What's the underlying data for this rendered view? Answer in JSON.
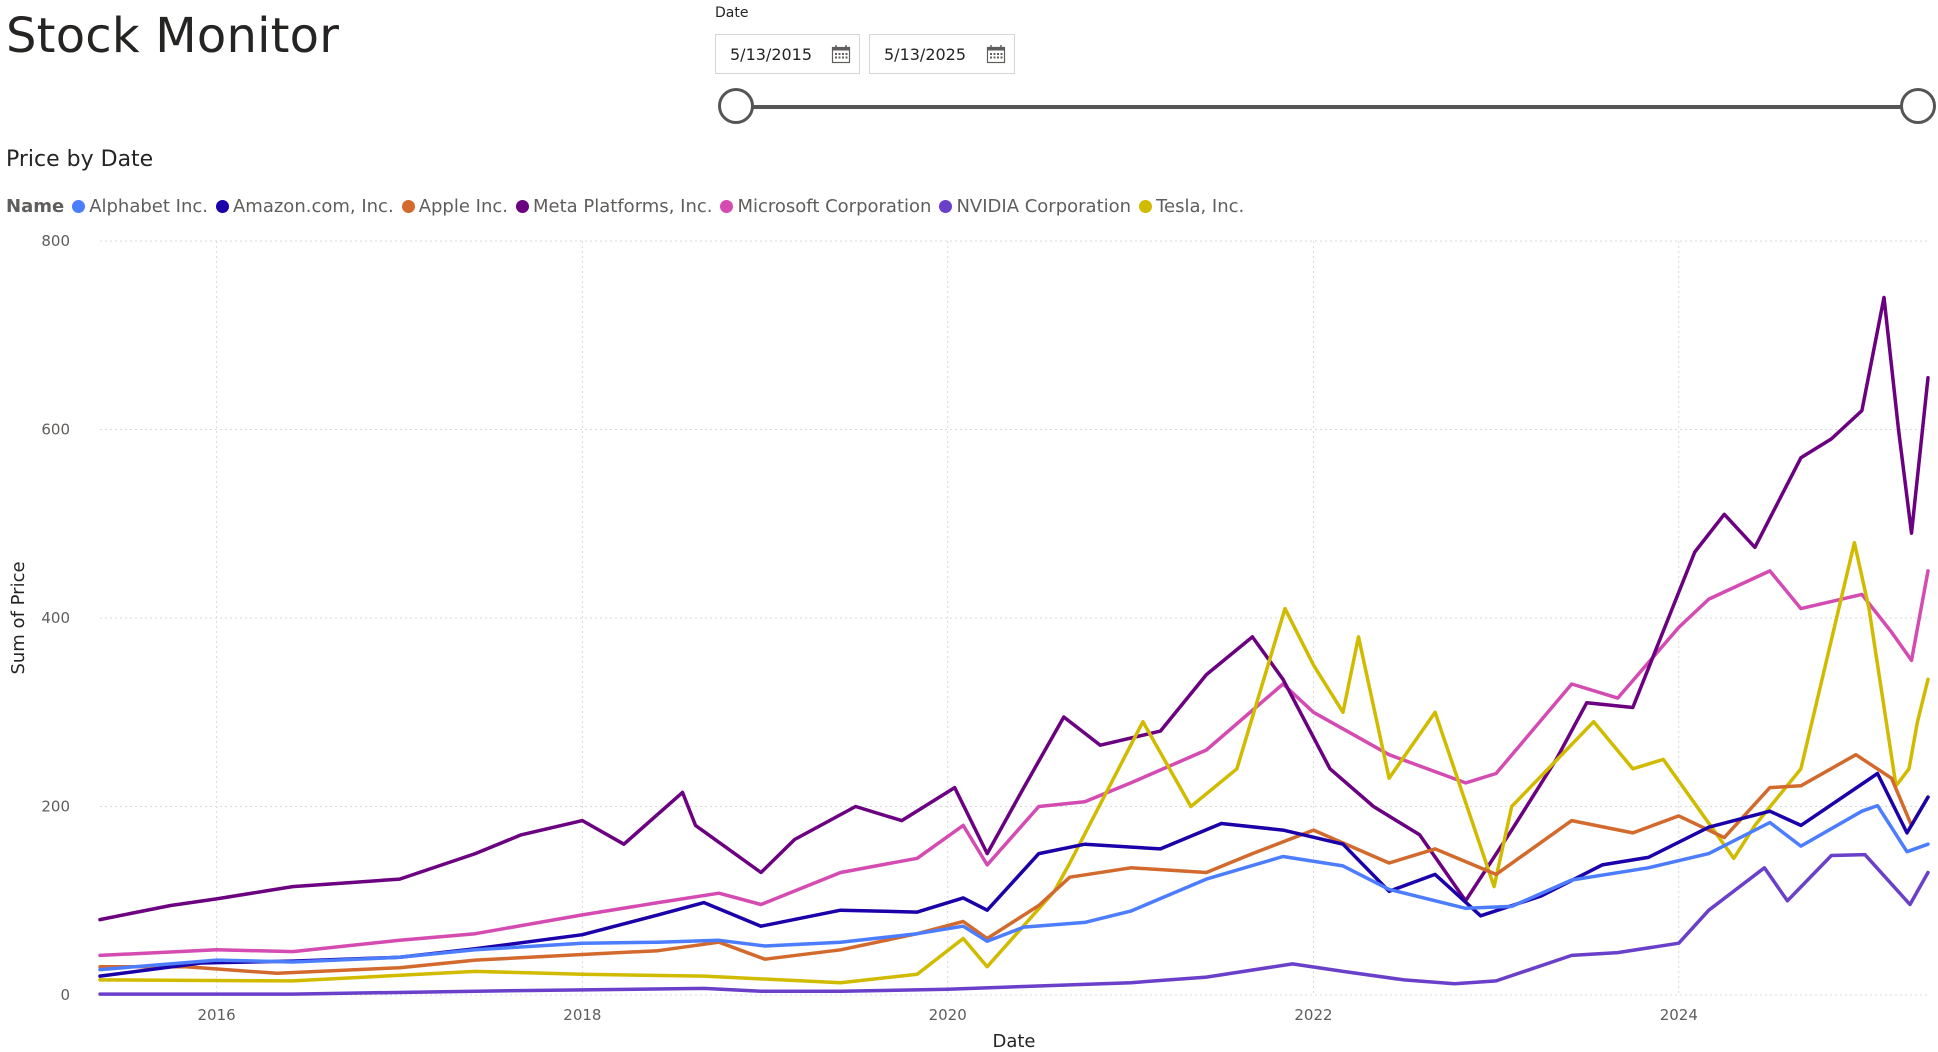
{
  "page": {
    "title": "Stock Monitor"
  },
  "slicer": {
    "label": "Date",
    "start_date": "5/13/2015",
    "end_date": "5/13/2025",
    "calendar_icon": "calendar-icon",
    "track_color": "#555555"
  },
  "chart_data": {
    "type": "line",
    "title": "Price by Date",
    "legend_title": "Name",
    "legend_position": "top-left",
    "xlabel": "Date",
    "ylabel": "Sum of Price",
    "xlim": [
      "2015-05-13",
      "2025-05-13"
    ],
    "ylim": [
      0,
      800
    ],
    "y_ticks": [
      0,
      200,
      400,
      600,
      800
    ],
    "x_ticks": [
      "2016",
      "2018",
      "2020",
      "2022",
      "2024"
    ],
    "grid": true,
    "series": [
      {
        "name": "Alphabet Inc.",
        "color": "#4c7dff",
        "points": [
          [
            "2015-05-13",
            27
          ],
          [
            "2015-10-01",
            33
          ],
          [
            "2016-01-01",
            37
          ],
          [
            "2016-06-01",
            35
          ],
          [
            "2017-01-01",
            40
          ],
          [
            "2017-06-01",
            48
          ],
          [
            "2018-01-01",
            55
          ],
          [
            "2018-06-01",
            56
          ],
          [
            "2018-10-01",
            58
          ],
          [
            "2019-01-01",
            52
          ],
          [
            "2019-06-01",
            56
          ],
          [
            "2019-11-01",
            65
          ],
          [
            "2020-02-01",
            73
          ],
          [
            "2020-03-20",
            57
          ],
          [
            "2020-06-01",
            72
          ],
          [
            "2020-10-01",
            77
          ],
          [
            "2021-01-01",
            89
          ],
          [
            "2021-06-01",
            123
          ],
          [
            "2021-11-01",
            147
          ],
          [
            "2022-03-01",
            137
          ],
          [
            "2022-06-01",
            112
          ],
          [
            "2022-11-01",
            92
          ],
          [
            "2023-02-01",
            94
          ],
          [
            "2023-06-01",
            122
          ],
          [
            "2023-11-01",
            135
          ],
          [
            "2024-03-01",
            150
          ],
          [
            "2024-07-01",
            183
          ],
          [
            "2024-09-01",
            158
          ],
          [
            "2025-01-01",
            195
          ],
          [
            "2025-02-01",
            201
          ],
          [
            "2025-04-01",
            152
          ],
          [
            "2025-05-13",
            160
          ]
        ]
      },
      {
        "name": "Amazon.com, Inc.",
        "color": "#1a00a8",
        "points": [
          [
            "2015-05-13",
            20
          ],
          [
            "2015-12-01",
            34
          ],
          [
            "2016-06-01",
            36
          ],
          [
            "2017-01-01",
            40
          ],
          [
            "2017-06-01",
            49
          ],
          [
            "2018-01-01",
            64
          ],
          [
            "2018-06-01",
            85
          ],
          [
            "2018-09-01",
            98
          ],
          [
            "2018-12-24",
            73
          ],
          [
            "2019-06-01",
            90
          ],
          [
            "2019-11-01",
            88
          ],
          [
            "2020-02-01",
            103
          ],
          [
            "2020-03-20",
            90
          ],
          [
            "2020-07-01",
            150
          ],
          [
            "2020-10-01",
            160
          ],
          [
            "2021-03-01",
            155
          ],
          [
            "2021-07-01",
            182
          ],
          [
            "2021-11-01",
            175
          ],
          [
            "2022-03-01",
            160
          ],
          [
            "2022-06-01",
            110
          ],
          [
            "2022-09-01",
            128
          ],
          [
            "2022-12-01",
            84
          ],
          [
            "2023-04-01",
            105
          ],
          [
            "2023-08-01",
            138
          ],
          [
            "2023-11-01",
            146
          ],
          [
            "2024-03-01",
            178
          ],
          [
            "2024-07-01",
            195
          ],
          [
            "2024-09-01",
            180
          ],
          [
            "2025-02-01",
            235
          ],
          [
            "2025-04-01",
            172
          ],
          [
            "2025-05-13",
            210
          ]
        ]
      },
      {
        "name": "Apple Inc.",
        "color": "#d26a2e",
        "points": [
          [
            "2015-05-13",
            30
          ],
          [
            "2015-11-01",
            30
          ],
          [
            "2016-05-01",
            23
          ],
          [
            "2017-01-01",
            29
          ],
          [
            "2017-06-01",
            37
          ],
          [
            "2018-01-01",
            43
          ],
          [
            "2018-06-01",
            47
          ],
          [
            "2018-10-01",
            56
          ],
          [
            "2019-01-01",
            38
          ],
          [
            "2019-06-01",
            48
          ],
          [
            "2019-11-01",
            65
          ],
          [
            "2020-02-01",
            78
          ],
          [
            "2020-03-20",
            60
          ],
          [
            "2020-07-01",
            95
          ],
          [
            "2020-09-01",
            125
          ],
          [
            "2021-01-01",
            135
          ],
          [
            "2021-06-01",
            130
          ],
          [
            "2021-09-01",
            150
          ],
          [
            "2022-01-01",
            175
          ],
          [
            "2022-06-01",
            140
          ],
          [
            "2022-09-01",
            155
          ],
          [
            "2023-01-01",
            128
          ],
          [
            "2023-06-01",
            185
          ],
          [
            "2023-10-01",
            172
          ],
          [
            "2024-01-01",
            190
          ],
          [
            "2024-04-01",
            167
          ],
          [
            "2024-07-01",
            220
          ],
          [
            "2024-09-01",
            222
          ],
          [
            "2024-12-20",
            255
          ],
          [
            "2025-03-01",
            230
          ],
          [
            "2025-04-10",
            180
          ],
          [
            "2025-05-13",
            210
          ]
        ]
      },
      {
        "name": "Meta Platforms, Inc.",
        "color": "#6b0080",
        "points": [
          [
            "2015-05-13",
            80
          ],
          [
            "2015-10-01",
            95
          ],
          [
            "2016-01-01",
            102
          ],
          [
            "2016-06-01",
            115
          ],
          [
            "2017-01-01",
            123
          ],
          [
            "2017-06-01",
            150
          ],
          [
            "2017-09-01",
            170
          ],
          [
            "2018-01-01",
            185
          ],
          [
            "2018-03-25",
            160
          ],
          [
            "2018-07-20",
            215
          ],
          [
            "2018-08-15",
            180
          ],
          [
            "2018-12-24",
            130
          ],
          [
            "2019-03-01",
            165
          ],
          [
            "2019-07-01",
            200
          ],
          [
            "2019-10-01",
            185
          ],
          [
            "2020-01-15",
            220
          ],
          [
            "2020-03-20",
            150
          ],
          [
            "2020-06-01",
            220
          ],
          [
            "2020-08-20",
            295
          ],
          [
            "2020-11-01",
            265
          ],
          [
            "2021-03-01",
            280
          ],
          [
            "2021-06-01",
            340
          ],
          [
            "2021-09-01",
            380
          ],
          [
            "2021-11-01",
            335
          ],
          [
            "2022-02-03",
            240
          ],
          [
            "2022-05-01",
            200
          ],
          [
            "2022-08-01",
            170
          ],
          [
            "2022-11-01",
            100
          ],
          [
            "2023-02-01",
            175
          ],
          [
            "2023-05-01",
            250
          ],
          [
            "2023-07-01",
            310
          ],
          [
            "2023-10-01",
            305
          ],
          [
            "2024-02-02",
            470
          ],
          [
            "2024-04-01",
            510
          ],
          [
            "2024-06-01",
            475
          ],
          [
            "2024-09-01",
            570
          ],
          [
            "2024-11-01",
            590
          ],
          [
            "2025-01-01",
            620
          ],
          [
            "2025-02-14",
            740
          ],
          [
            "2025-03-15",
            600
          ],
          [
            "2025-04-10",
            490
          ],
          [
            "2025-05-13",
            655
          ]
        ]
      },
      {
        "name": "Microsoft Corporation",
        "color": "#d44bb1",
        "points": [
          [
            "2015-05-13",
            42
          ],
          [
            "2016-01-01",
            48
          ],
          [
            "2016-06-01",
            46
          ],
          [
            "2017-01-01",
            58
          ],
          [
            "2017-06-01",
            65
          ],
          [
            "2018-01-01",
            85
          ],
          [
            "2018-06-01",
            98
          ],
          [
            "2018-10-01",
            108
          ],
          [
            "2018-12-24",
            96
          ],
          [
            "2019-06-01",
            130
          ],
          [
            "2019-11-01",
            145
          ],
          [
            "2020-02-01",
            180
          ],
          [
            "2020-03-20",
            138
          ],
          [
            "2020-07-01",
            200
          ],
          [
            "2020-10-01",
            205
          ],
          [
            "2021-01-01",
            225
          ],
          [
            "2021-06-01",
            260
          ],
          [
            "2021-11-01",
            330
          ],
          [
            "2022-01-01",
            300
          ],
          [
            "2022-06-01",
            255
          ],
          [
            "2022-11-01",
            225
          ],
          [
            "2023-01-01",
            235
          ],
          [
            "2023-06-01",
            330
          ],
          [
            "2023-09-01",
            315
          ],
          [
            "2024-01-01",
            390
          ],
          [
            "2024-03-01",
            420
          ],
          [
            "2024-07-01",
            450
          ],
          [
            "2024-09-01",
            410
          ],
          [
            "2025-01-01",
            425
          ],
          [
            "2025-03-01",
            385
          ],
          [
            "2025-04-10",
            355
          ],
          [
            "2025-05-13",
            450
          ]
        ]
      },
      {
        "name": "NVIDIA Corporation",
        "color": "#6a3fc9",
        "points": [
          [
            "2015-05-13",
            1
          ],
          [
            "2016-06-01",
            1
          ],
          [
            "2017-06-01",
            4
          ],
          [
            "2018-09-01",
            7
          ],
          [
            "2018-12-24",
            4
          ],
          [
            "2019-06-01",
            4
          ],
          [
            "2020-01-01",
            6
          ],
          [
            "2020-06-01",
            9
          ],
          [
            "2021-01-01",
            13
          ],
          [
            "2021-06-01",
            19
          ],
          [
            "2021-11-20",
            33
          ],
          [
            "2022-03-01",
            25
          ],
          [
            "2022-07-01",
            16
          ],
          [
            "2022-10-10",
            12
          ],
          [
            "2023-01-01",
            15
          ],
          [
            "2023-06-01",
            42
          ],
          [
            "2023-09-01",
            45
          ],
          [
            "2024-01-01",
            55
          ],
          [
            "2024-03-01",
            90
          ],
          [
            "2024-06-20",
            135
          ],
          [
            "2024-08-05",
            100
          ],
          [
            "2024-11-01",
            148
          ],
          [
            "2025-01-07",
            149
          ],
          [
            "2025-04-07",
            96
          ],
          [
            "2025-05-13",
            130
          ]
        ]
      },
      {
        "name": "Tesla, Inc.",
        "color": "#d1bb00",
        "points": [
          [
            "2015-05-13",
            16
          ],
          [
            "2016-06-01",
            15
          ],
          [
            "2017-06-01",
            25
          ],
          [
            "2018-01-01",
            22
          ],
          [
            "2018-09-01",
            20
          ],
          [
            "2019-06-01",
            13
          ],
          [
            "2019-11-01",
            22
          ],
          [
            "2020-02-01",
            60
          ],
          [
            "2020-03-20",
            30
          ],
          [
            "2020-08-01",
            110
          ],
          [
            "2020-09-01",
            140
          ],
          [
            "2021-01-25",
            290
          ],
          [
            "2021-05-01",
            200
          ],
          [
            "2021-08-01",
            240
          ],
          [
            "2021-11-05",
            410
          ],
          [
            "2022-01-01",
            350
          ],
          [
            "2022-03-01",
            300
          ],
          [
            "2022-04-01",
            380
          ],
          [
            "2022-06-01",
            230
          ],
          [
            "2022-09-01",
            300
          ],
          [
            "2022-12-28",
            115
          ],
          [
            "2023-02-01",
            200
          ],
          [
            "2023-07-15",
            290
          ],
          [
            "2023-10-01",
            240
          ],
          [
            "2023-12-01",
            250
          ],
          [
            "2024-04-20",
            145
          ],
          [
            "2024-06-01",
            180
          ],
          [
            "2024-09-01",
            240
          ],
          [
            "2024-12-17",
            480
          ],
          [
            "2025-01-15",
            410
          ],
          [
            "2025-03-10",
            222
          ],
          [
            "2025-04-05",
            240
          ],
          [
            "2025-04-22",
            290
          ],
          [
            "2025-05-13",
            335
          ]
        ]
      }
    ]
  }
}
